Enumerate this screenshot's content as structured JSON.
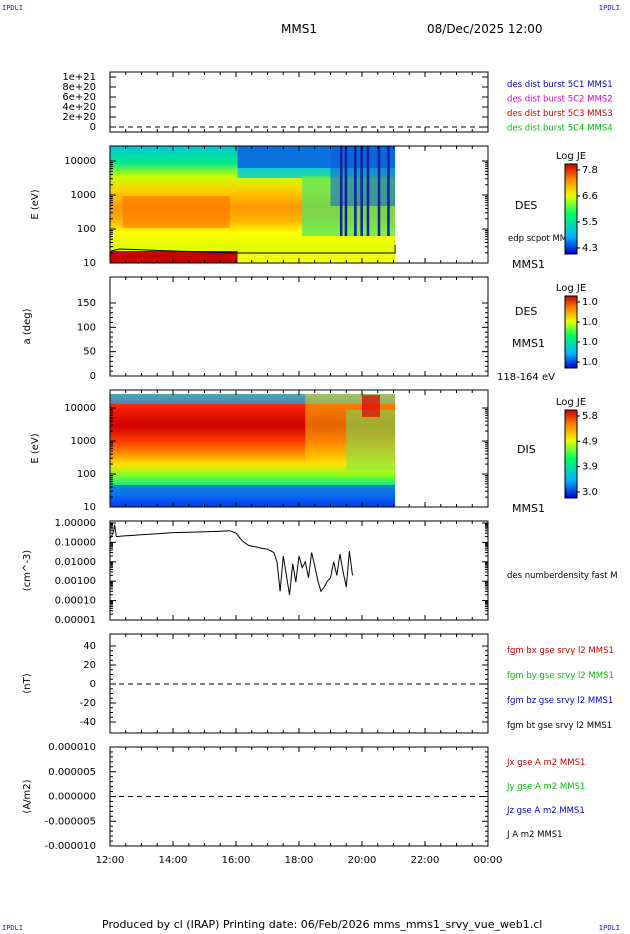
{
  "corners": {
    "tl": "IPDLI",
    "tr": "IPDLI",
    "bl": "IPDLI",
    "br": "IPDLI"
  },
  "header": {
    "spacecraft": "MMS1",
    "datetime": "08/Dec/2025 12:00"
  },
  "footer": {
    "text": "Produced by cl (IRAP)   Printing date: 06/Feb/2026   mms_mms1_srvy_vue_web1.cl"
  },
  "colors": {
    "red": "#cc0000",
    "magenta": "#d400d4",
    "green": "#00c000",
    "blue": "#0000cc",
    "black": "#000000"
  },
  "chart_data": [
    {
      "type": "line",
      "id": "panel1",
      "ylabel": "",
      "yticks": [
        "1e+21",
        "8e+20",
        "6e+20",
        "4e+20",
        "2e+20",
        "0"
      ],
      "legend": [
        {
          "name": "des dist burst 5C1 MMS1",
          "color": "#0000cc"
        },
        {
          "name": "des dist burst 5C2 MMS2",
          "color": "#d400d4"
        },
        {
          "name": "des dist burst 5C3 MMS3",
          "color": "#cc0000"
        },
        {
          "name": "des dist burst 5C4 MMS4",
          "color": "#00c000"
        }
      ]
    },
    {
      "type": "heatmap",
      "id": "panel2",
      "ylabel": "E (eV)",
      "yticks": [
        "10000",
        "1000",
        "100",
        "10"
      ],
      "label": "DES",
      "sc": "MMS1",
      "overlay": "edp scpot MMS1",
      "colorbar": {
        "title": "Log JE",
        "ticks": [
          "7.8",
          "6.6",
          "5.5",
          "4.3"
        ]
      }
    },
    {
      "type": "heatmap",
      "id": "panel3",
      "ylabel": "a (deg)",
      "yticks": [
        "150",
        "100",
        "50",
        "0"
      ],
      "label": "DES",
      "sc": "MMS1",
      "energy": "118-164 eV",
      "colorbar": {
        "title": "Log JE",
        "ticks": [
          "1.0",
          "1.0",
          "1.0",
          "1.0"
        ]
      }
    },
    {
      "type": "heatmap",
      "id": "panel4",
      "ylabel": "E (eV)",
      "yticks": [
        "10000",
        "1000",
        "100",
        "10"
      ],
      "label": "DIS",
      "sc": "MMS1",
      "colorbar": {
        "title": "Log JE",
        "ticks": [
          "5.8",
          "4.9",
          "3.9",
          "3.0"
        ]
      }
    },
    {
      "type": "line",
      "id": "panel5",
      "ylabel": "(cm^-3)",
      "yticks": [
        "1.00000",
        "0.10000",
        "0.01000",
        "0.00100",
        "0.00010",
        "0.00001"
      ],
      "legend": [
        {
          "name": "des numberdensity fast M",
          "color": "#000000"
        }
      ],
      "series": [
        {
          "x_hours": [
            12.0,
            12.1,
            12.15,
            12.2,
            12.5,
            13.0,
            13.5,
            14.0,
            14.5,
            15.0,
            15.5,
            15.8,
            16.0,
            16.2,
            16.4,
            16.6,
            16.8,
            17.0,
            17.2,
            17.3,
            17.4,
            17.5,
            17.6,
            17.7,
            17.8,
            17.9,
            18.0,
            18.1,
            18.2,
            18.3,
            18.4,
            18.5,
            18.6,
            18.7,
            18.8,
            18.9,
            19.0,
            19.1,
            19.2,
            19.3,
            19.4,
            19.5,
            19.6,
            19.7
          ],
          "y": [
            0.15,
            0.3,
            0.8,
            0.2,
            0.22,
            0.25,
            0.28,
            0.32,
            0.33,
            0.35,
            0.38,
            0.4,
            0.3,
            0.12,
            0.07,
            0.06,
            0.05,
            0.045,
            0.03,
            0.01,
            0.0003,
            0.02,
            0.002,
            0.0002,
            0.008,
            0.0009,
            0.02,
            0.005,
            0.01,
            0.0015,
            0.03,
            0.006,
            0.001,
            0.0003,
            0.0005,
            0.001,
            0.0015,
            0.01,
            0.002,
            0.025,
            0.003,
            0.0005,
            0.035,
            0.002
          ]
        }
      ]
    },
    {
      "type": "line",
      "id": "panel6",
      "ylabel": "(nT)",
      "yticks": [
        "40",
        "20",
        "0",
        "-20",
        "-40"
      ],
      "legend": [
        {
          "name": "fgm bx gse srvy l2 MMS1",
          "color": "#cc0000"
        },
        {
          "name": "fgm by gse srvy l2 MMS1",
          "color": "#00c000"
        },
        {
          "name": "fgm bz gse srvy l2 MMS1",
          "color": "#0000cc"
        },
        {
          "name": "fgm bt gse srvy l2 MMS1",
          "color": "#000000"
        }
      ]
    },
    {
      "type": "line",
      "id": "panel7",
      "ylabel": "(A/m2)",
      "yticks": [
        "0.000010",
        "0.000005",
        "0.000000",
        "-0.000005",
        "-0.000010"
      ],
      "legend": [
        {
          "name": "Jx gse A m2 MMS1",
          "color": "#cc0000"
        },
        {
          "name": "Jy gse A m2 MMS1",
          "color": "#00c000"
        },
        {
          "name": "Jz gse A m2 MMS1",
          "color": "#0000cc"
        },
        {
          "name": "J A m2 MMS1",
          "color": "#000000"
        }
      ]
    }
  ],
  "xaxis": {
    "ticks": [
      "12:00",
      "14:00",
      "16:00",
      "18:00",
      "20:00",
      "22:00",
      "00:00"
    ],
    "range_hours": [
      12,
      24
    ]
  }
}
